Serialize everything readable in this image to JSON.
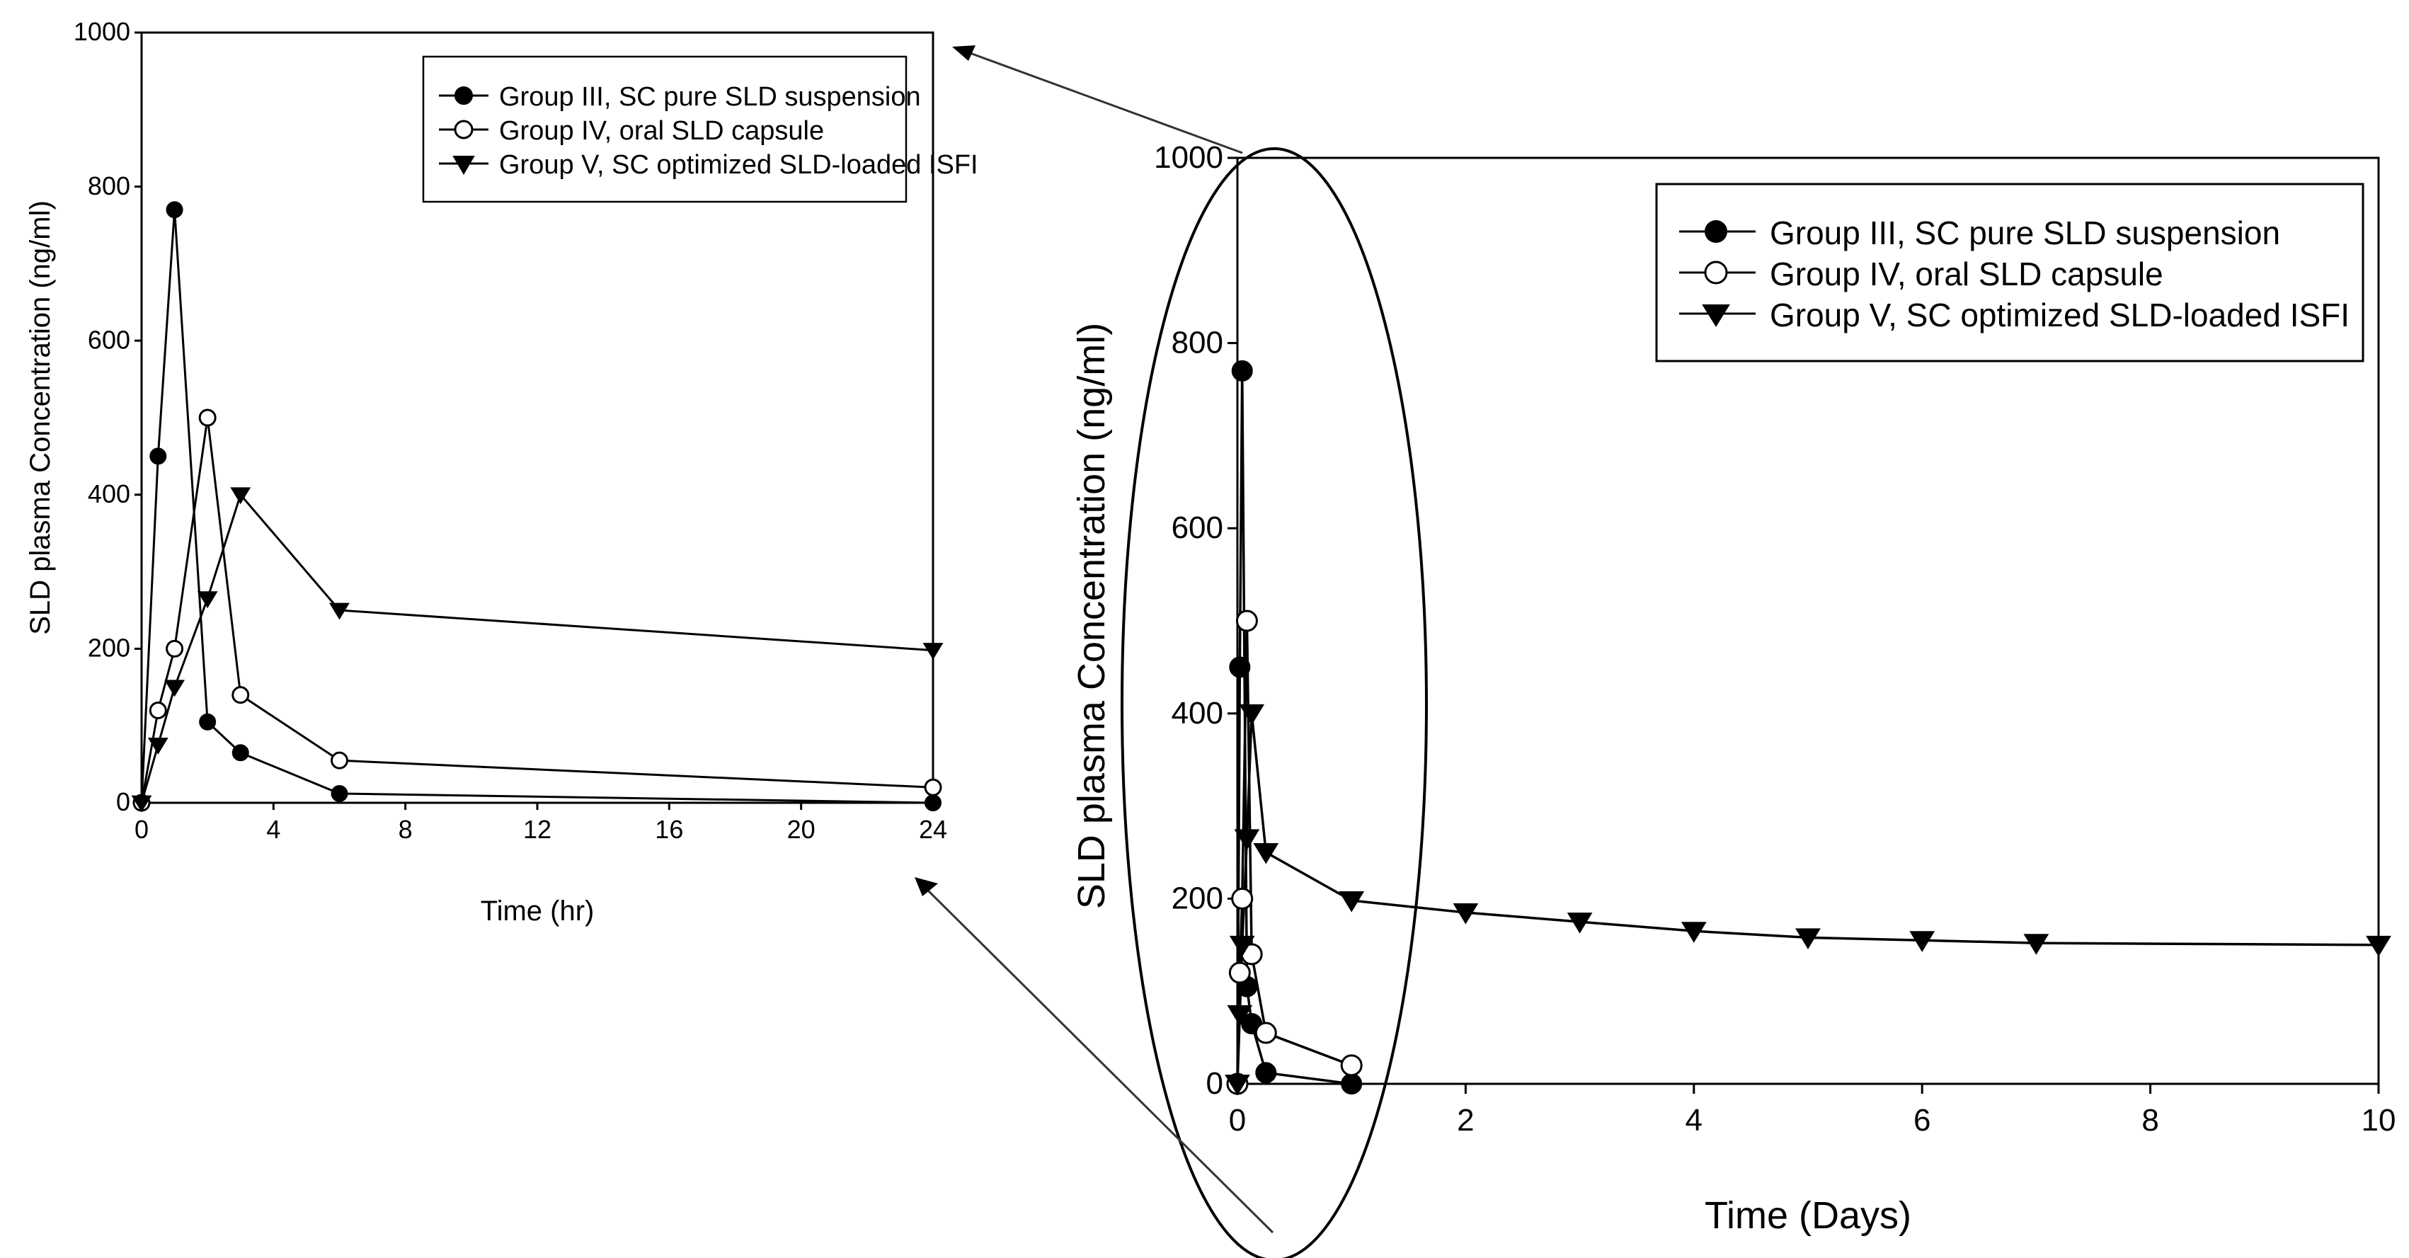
{
  "colors": {
    "ink": "#000000",
    "background": "#ffffff",
    "open_marker_fill": "#ffffff"
  },
  "chart_data": [
    {
      "id": "inset",
      "type": "line",
      "title": "",
      "xlabel": "Time (hr)",
      "ylabel": "SLD plasma Concentration (ng/ml)",
      "xlim": [
        0,
        24
      ],
      "ylim": [
        0,
        1000
      ],
      "xticks": [
        0,
        4,
        8,
        12,
        16,
        20,
        24
      ],
      "yticks": [
        0,
        200,
        400,
        600,
        800,
        1000
      ],
      "grid": false,
      "legend_position": "top-right",
      "series": [
        {
          "name": "Group III, SC pure SLD suspension",
          "marker": "filled-circle",
          "x": [
            0,
            0.5,
            1,
            2,
            3,
            6,
            24
          ],
          "y": [
            0,
            450,
            770,
            105,
            65,
            12,
            0
          ]
        },
        {
          "name": "Group IV, oral SLD capsule",
          "marker": "open-circle",
          "x": [
            0,
            0.5,
            1,
            2,
            3,
            6,
            24
          ],
          "y": [
            0,
            120,
            200,
            500,
            140,
            55,
            20
          ]
        },
        {
          "name": "Group V, SC optimized SLD-loaded ISFI",
          "marker": "filled-triangle-down",
          "x": [
            0,
            0.5,
            1,
            2,
            3,
            6,
            24
          ],
          "y": [
            0,
            75,
            150,
            265,
            400,
            250,
            198
          ]
        }
      ]
    },
    {
      "id": "main",
      "type": "line",
      "title": "",
      "xlabel": "Time (Days)",
      "ylabel": "SLD plasma Concentration (ng/ml)",
      "xlim": [
        0,
        10
      ],
      "ylim": [
        0,
        1000
      ],
      "xticks": [
        0,
        2,
        4,
        6,
        8,
        10
      ],
      "yticks": [
        0,
        200,
        400,
        600,
        800,
        1000
      ],
      "grid": false,
      "legend_position": "top-right",
      "annotation": "ellipse highlighting the first day with arrows pointing to the zoomed inset",
      "series": [
        {
          "name": "Group III, SC pure SLD suspension",
          "marker": "filled-circle",
          "x": [
            0,
            0.0208,
            0.0417,
            0.0833,
            0.125,
            0.25,
            1
          ],
          "y": [
            0,
            450,
            770,
            105,
            65,
            12,
            0
          ]
        },
        {
          "name": "Group IV, oral SLD capsule",
          "marker": "open-circle",
          "x": [
            0,
            0.0208,
            0.0417,
            0.0833,
            0.125,
            0.25,
            1
          ],
          "y": [
            0,
            120,
            200,
            500,
            140,
            55,
            20
          ]
        },
        {
          "name": "Group V, SC optimized SLD-loaded ISFI",
          "marker": "filled-triangle-down",
          "x": [
            0,
            0.0208,
            0.0417,
            0.0833,
            0.125,
            0.25,
            1,
            2,
            3,
            4,
            5,
            6,
            7,
            10
          ],
          "y": [
            0,
            75,
            150,
            265,
            400,
            250,
            198,
            185,
            175,
            165,
            158,
            155,
            152,
            150
          ]
        }
      ]
    }
  ]
}
